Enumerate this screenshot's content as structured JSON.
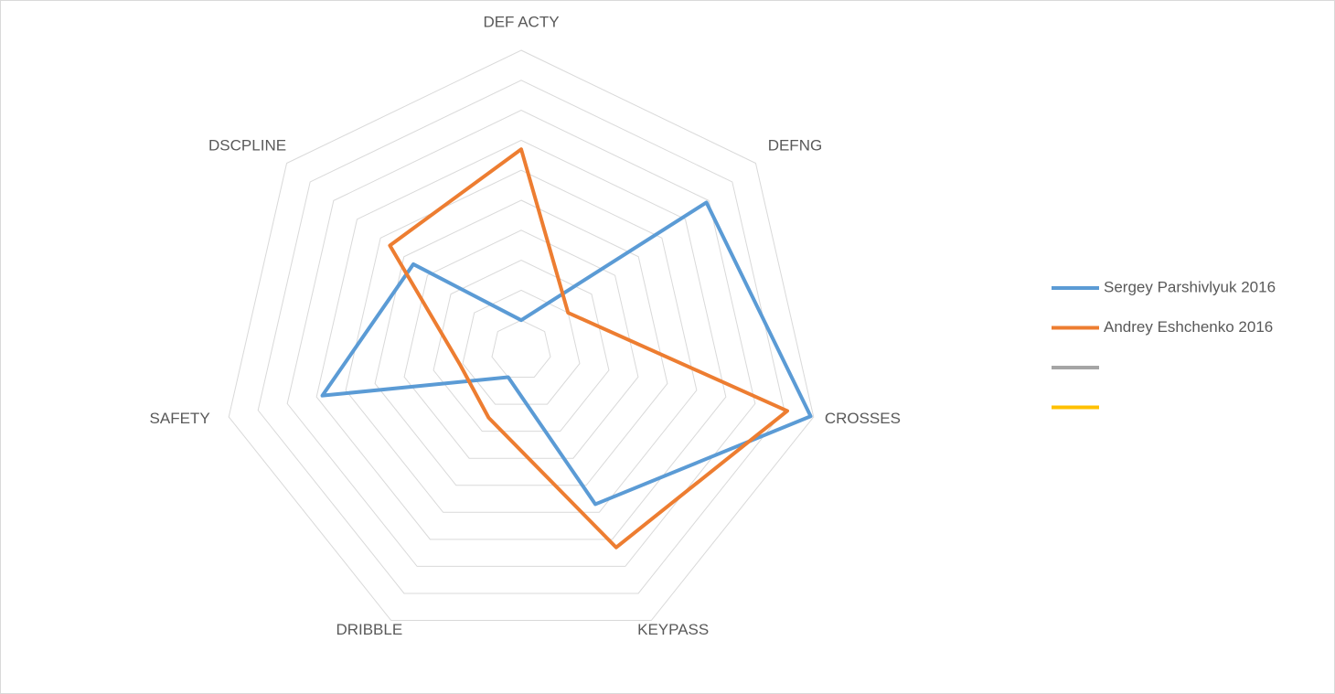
{
  "chart_data": {
    "type": "radar",
    "categories": [
      "DEF ACTY",
      "DEFNG",
      "CROSSES",
      "KEYPASS",
      "DRIBBLE",
      "SAFETY",
      "DSCPLINE"
    ],
    "series": [
      {
        "name": "Sergey Parshivlyuk 2016",
        "color": "#5b9bd5",
        "values": [
          1.0,
          7.9,
          9.9,
          5.7,
          1.0,
          6.8,
          4.6
        ]
      },
      {
        "name": "Andrey Eshchenko 2016",
        "color": "#ed7d31",
        "values": [
          6.7,
          2.0,
          9.1,
          7.3,
          2.5,
          2.1,
          5.6
        ]
      },
      {
        "name": null,
        "color": "#a5a5a5",
        "values": [
          null,
          null,
          null,
          null,
          null,
          null,
          null
        ]
      },
      {
        "name": null,
        "color": "#ffc000",
        "values": [
          null,
          null,
          null,
          null,
          null,
          null,
          null
        ]
      }
    ],
    "rlim": [
      0,
      10
    ],
    "rticks": [
      1,
      2,
      3,
      4,
      5,
      6,
      7,
      8,
      9,
      10
    ],
    "grid": true,
    "legend": "right"
  }
}
